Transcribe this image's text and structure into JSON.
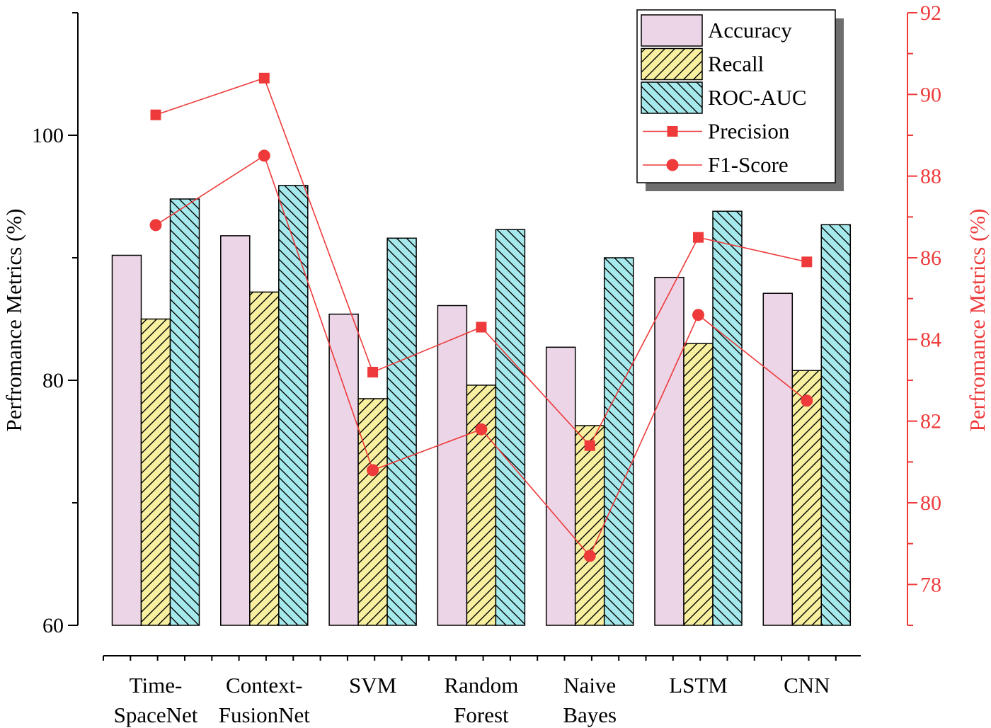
{
  "chart_data": {
    "type": "bar",
    "categories": [
      [
        "Time-",
        "SpaceNet"
      ],
      [
        "Context-",
        "FusionNet"
      ],
      [
        "SVM"
      ],
      [
        "Random",
        "Forest"
      ],
      [
        "Naive",
        "Bayes"
      ],
      [
        "LSTM"
      ],
      [
        "CNN"
      ]
    ],
    "series": [
      {
        "name": "Accuracy",
        "type": "bar",
        "axis": "left",
        "pattern": "solid",
        "color": "#ecd5e6",
        "values": [
          90.2,
          91.8,
          85.4,
          86.1,
          82.7,
          88.4,
          87.1
        ]
      },
      {
        "name": "Recall",
        "type": "bar",
        "axis": "left",
        "pattern": "hatch-forward",
        "color": "#f8f0a0",
        "values": [
          85.0,
          87.2,
          78.5,
          79.6,
          76.3,
          83.0,
          80.8
        ]
      },
      {
        "name": "ROC-AUC",
        "type": "bar",
        "axis": "left",
        "pattern": "hatch-back",
        "color": "#a6e9ec",
        "values": [
          94.8,
          95.9,
          91.6,
          92.3,
          90.0,
          93.8,
          92.7
        ]
      },
      {
        "name": "Precision",
        "type": "line",
        "axis": "right",
        "marker": "square",
        "color": "#ee3a3a",
        "values": [
          89.5,
          90.4,
          83.2,
          84.3,
          81.4,
          86.5,
          85.9
        ]
      },
      {
        "name": "F1-Score",
        "type": "line",
        "axis": "right",
        "marker": "circle",
        "color": "#ee3a3a",
        "values": [
          86.8,
          88.5,
          80.8,
          81.8,
          78.7,
          84.6,
          82.5
        ]
      }
    ],
    "y_left": {
      "label": "Perfromance Metrics (%)",
      "ylim": [
        60,
        110
      ],
      "ticks": [
        60,
        80,
        100
      ],
      "color": "#000000"
    },
    "y_right": {
      "label": "Perfromance Metrics (%)",
      "ylim": [
        77,
        92
      ],
      "ticks": [
        78,
        80,
        82,
        84,
        86,
        88,
        90,
        92
      ],
      "color": "#ee3a3a"
    },
    "xlabel": "",
    "legend_position": "top-right",
    "grid": false
  }
}
